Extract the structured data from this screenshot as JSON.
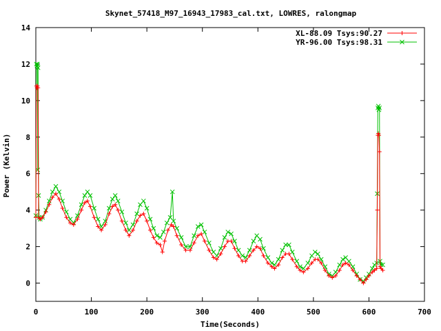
{
  "chart_data": {
    "type": "line",
    "title": "Skynet_57418_M97_16943_17983_cal.txt, LOWRES, ralongmap",
    "xlabel": "Time(Seconds)",
    "ylabel": "Power (Kelvin)",
    "xlim": [
      0,
      700
    ],
    "ylim": [
      -1,
      14
    ],
    "xticks": [
      0,
      100,
      200,
      300,
      400,
      500,
      600,
      700
    ],
    "yticks": [
      0,
      2,
      4,
      6,
      8,
      10,
      12,
      14
    ],
    "grid": false,
    "legend_position": "top-right",
    "series": [
      {
        "name": "XL-88.09 Tsys:90.27",
        "color": "#ff0000",
        "marker": "plus",
        "points": [
          [
            0,
            3.6
          ],
          [
            1,
            10.8
          ],
          [
            2,
            10.7
          ],
          [
            3,
            10.8
          ],
          [
            4,
            10.7
          ],
          [
            5,
            3.6
          ],
          [
            8,
            3.5
          ],
          [
            12,
            3.6
          ],
          [
            18,
            3.9
          ],
          [
            24,
            4.3
          ],
          [
            30,
            4.7
          ],
          [
            36,
            4.9
          ],
          [
            42,
            4.6
          ],
          [
            48,
            4.1
          ],
          [
            55,
            3.6
          ],
          [
            62,
            3.3
          ],
          [
            68,
            3.2
          ],
          [
            75,
            3.5
          ],
          [
            82,
            4.0
          ],
          [
            88,
            4.4
          ],
          [
            93,
            4.5
          ],
          [
            98,
            4.2
          ],
          [
            105,
            3.6
          ],
          [
            112,
            3.1
          ],
          [
            118,
            2.9
          ],
          [
            125,
            3.2
          ],
          [
            132,
            3.8
          ],
          [
            138,
            4.2
          ],
          [
            143,
            4.3
          ],
          [
            148,
            4.0
          ],
          [
            155,
            3.4
          ],
          [
            162,
            2.9
          ],
          [
            168,
            2.6
          ],
          [
            175,
            2.9
          ],
          [
            182,
            3.4
          ],
          [
            188,
            3.7
          ],
          [
            194,
            3.8
          ],
          [
            200,
            3.4
          ],
          [
            206,
            2.9
          ],
          [
            212,
            2.5
          ],
          [
            218,
            2.2
          ],
          [
            224,
            2.1
          ],
          [
            228,
            1.7
          ],
          [
            232,
            2.3
          ],
          [
            238,
            2.9
          ],
          [
            244,
            3.2
          ],
          [
            248,
            3.1
          ],
          [
            254,
            2.6
          ],
          [
            262,
            2.1
          ],
          [
            270,
            1.8
          ],
          [
            278,
            1.8
          ],
          [
            285,
            2.2
          ],
          [
            292,
            2.6
          ],
          [
            298,
            2.7
          ],
          [
            304,
            2.3
          ],
          [
            312,
            1.8
          ],
          [
            320,
            1.4
          ],
          [
            326,
            1.3
          ],
          [
            333,
            1.6
          ],
          [
            340,
            2.0
          ],
          [
            346,
            2.3
          ],
          [
            352,
            2.3
          ],
          [
            358,
            1.9
          ],
          [
            365,
            1.5
          ],
          [
            372,
            1.2
          ],
          [
            378,
            1.2
          ],
          [
            385,
            1.5
          ],
          [
            392,
            1.8
          ],
          [
            398,
            2.0
          ],
          [
            404,
            1.9
          ],
          [
            410,
            1.5
          ],
          [
            418,
            1.1
          ],
          [
            425,
            0.9
          ],
          [
            430,
            0.8
          ],
          [
            437,
            1.0
          ],
          [
            444,
            1.4
          ],
          [
            450,
            1.6
          ],
          [
            456,
            1.6
          ],
          [
            462,
            1.3
          ],
          [
            470,
            0.9
          ],
          [
            476,
            0.7
          ],
          [
            482,
            0.6
          ],
          [
            490,
            0.8
          ],
          [
            497,
            1.1
          ],
          [
            503,
            1.3
          ],
          [
            508,
            1.3
          ],
          [
            514,
            1.1
          ],
          [
            521,
            0.7
          ],
          [
            528,
            0.4
          ],
          [
            534,
            0.3
          ],
          [
            540,
            0.4
          ],
          [
            547,
            0.7
          ],
          [
            553,
            1.0
          ],
          [
            558,
            1.1
          ],
          [
            564,
            1.0
          ],
          [
            571,
            0.7
          ],
          [
            578,
            0.4
          ],
          [
            584,
            0.2
          ],
          [
            590,
            0.0
          ],
          [
            595,
            0.2
          ],
          [
            600,
            0.4
          ],
          [
            606,
            0.6
          ],
          [
            610,
            0.7
          ],
          [
            614,
            0.8
          ],
          [
            615,
            4.0
          ],
          [
            616,
            8.1
          ],
          [
            617,
            8.2
          ],
          [
            618,
            8.1
          ],
          [
            619,
            7.2
          ],
          [
            620,
            0.9
          ],
          [
            622,
            0.8
          ],
          [
            625,
            0.7
          ]
        ]
      },
      {
        "name": "YR-96.00 Tsys:98.31",
        "color": "#00c000",
        "marker": "cross",
        "points": [
          [
            0,
            3.7
          ],
          [
            1,
            12.0
          ],
          [
            2,
            11.9
          ],
          [
            3,
            12.0
          ],
          [
            3.5,
            6.2
          ],
          [
            4,
            11.8
          ],
          [
            5,
            4.8
          ],
          [
            6,
            3.6
          ],
          [
            8,
            3.5
          ],
          [
            12,
            3.6
          ],
          [
            18,
            4.0
          ],
          [
            24,
            4.5
          ],
          [
            30,
            5.0
          ],
          [
            36,
            5.3
          ],
          [
            42,
            5.0
          ],
          [
            48,
            4.5
          ],
          [
            55,
            3.9
          ],
          [
            62,
            3.5
          ],
          [
            68,
            3.3
          ],
          [
            75,
            3.7
          ],
          [
            82,
            4.3
          ],
          [
            88,
            4.8
          ],
          [
            93,
            5.0
          ],
          [
            98,
            4.8
          ],
          [
            105,
            4.1
          ],
          [
            112,
            3.5
          ],
          [
            118,
            3.1
          ],
          [
            125,
            3.4
          ],
          [
            132,
            4.1
          ],
          [
            138,
            4.6
          ],
          [
            143,
            4.8
          ],
          [
            148,
            4.5
          ],
          [
            155,
            3.9
          ],
          [
            162,
            3.3
          ],
          [
            168,
            2.9
          ],
          [
            175,
            3.2
          ],
          [
            182,
            3.8
          ],
          [
            188,
            4.3
          ],
          [
            194,
            4.5
          ],
          [
            200,
            4.1
          ],
          [
            206,
            3.5
          ],
          [
            212,
            3.0
          ],
          [
            218,
            2.6
          ],
          [
            224,
            2.5
          ],
          [
            230,
            2.8
          ],
          [
            236,
            3.3
          ],
          [
            242,
            3.6
          ],
          [
            246,
            5.0
          ],
          [
            248,
            3.4
          ],
          [
            254,
            3.0
          ],
          [
            262,
            2.5
          ],
          [
            270,
            2.0
          ],
          [
            278,
            2.0
          ],
          [
            285,
            2.6
          ],
          [
            292,
            3.1
          ],
          [
            298,
            3.2
          ],
          [
            304,
            2.8
          ],
          [
            312,
            2.2
          ],
          [
            320,
            1.7
          ],
          [
            326,
            1.5
          ],
          [
            333,
            1.9
          ],
          [
            340,
            2.5
          ],
          [
            346,
            2.8
          ],
          [
            352,
            2.7
          ],
          [
            358,
            2.3
          ],
          [
            365,
            1.8
          ],
          [
            372,
            1.5
          ],
          [
            378,
            1.4
          ],
          [
            385,
            1.8
          ],
          [
            392,
            2.3
          ],
          [
            398,
            2.6
          ],
          [
            404,
            2.4
          ],
          [
            410,
            1.9
          ],
          [
            418,
            1.4
          ],
          [
            425,
            1.1
          ],
          [
            430,
            1.0
          ],
          [
            437,
            1.3
          ],
          [
            444,
            1.8
          ],
          [
            450,
            2.1
          ],
          [
            456,
            2.1
          ],
          [
            462,
            1.7
          ],
          [
            470,
            1.2
          ],
          [
            476,
            0.9
          ],
          [
            482,
            0.8
          ],
          [
            490,
            1.1
          ],
          [
            497,
            1.5
          ],
          [
            503,
            1.7
          ],
          [
            508,
            1.6
          ],
          [
            514,
            1.3
          ],
          [
            521,
            0.9
          ],
          [
            528,
            0.5
          ],
          [
            534,
            0.4
          ],
          [
            540,
            0.6
          ],
          [
            547,
            1.0
          ],
          [
            553,
            1.3
          ],
          [
            558,
            1.4
          ],
          [
            564,
            1.2
          ],
          [
            571,
            0.9
          ],
          [
            578,
            0.5
          ],
          [
            584,
            0.2
          ],
          [
            590,
            0.1
          ],
          [
            595,
            0.3
          ],
          [
            600,
            0.5
          ],
          [
            606,
            0.8
          ],
          [
            610,
            1.0
          ],
          [
            614,
            1.1
          ],
          [
            615,
            4.9
          ],
          [
            616,
            9.6
          ],
          [
            617,
            9.7
          ],
          [
            618,
            9.5
          ],
          [
            619,
            9.6
          ],
          [
            620,
            1.2
          ],
          [
            622,
            1.0
          ],
          [
            625,
            1.0
          ]
        ]
      }
    ]
  }
}
